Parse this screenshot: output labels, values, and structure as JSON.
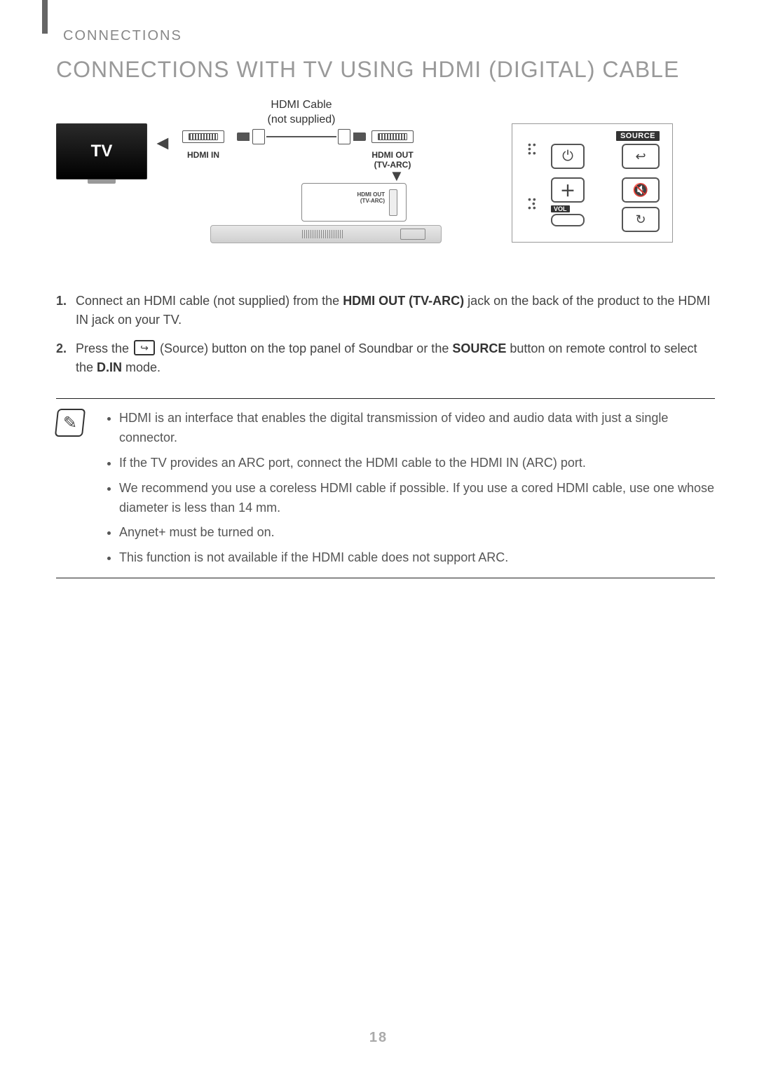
{
  "section_label": "CONNECTIONS",
  "title": "CONNECTIONS WITH TV USING HDMI (DIGITAL) CABLE",
  "diagram": {
    "tv_label": "TV",
    "cable_caption_line1": "HDMI Cable",
    "cable_caption_line2": "(not supplied)",
    "hdmi_in_label": "HDMI IN",
    "hdmi_out_label_line1": "HDMI OUT",
    "hdmi_out_label_line2": "(TV-ARC)",
    "soundbar_port_label_line1": "HDMI OUT",
    "soundbar_port_label_line2": "(TV-ARC)",
    "remote": {
      "source_tag": "SOURCE",
      "vol_tag": "VOL"
    }
  },
  "steps": [
    {
      "num": "1.",
      "pre": "Connect an HDMI cable (not supplied) from the ",
      "bold1": "HDMI OUT (TV-ARC)",
      "mid": " jack on the back of the product to the HDMI IN jack on your TV.",
      "has_icon": false
    },
    {
      "num": "2.",
      "pre": "Press the ",
      "icon": true,
      "mid1": " (Source) button on the top panel of Soundbar or the ",
      "bold1": "SOURCE",
      "mid2": " button on remote control to select the ",
      "bold2": "D.IN",
      "post": " mode."
    }
  ],
  "notes": [
    "HDMI is an interface that enables the digital transmission of video and audio data with just a single connector.",
    "If the TV provides an ARC port, connect the HDMI cable to the HDMI IN (ARC) port.",
    "We recommend you use a coreless HDMI cable if possible. If you use a cored HDMI cable, use one whose diameter is less than 14 mm.",
    "Anynet+ must be turned on.",
    "This function is not available if the HDMI cable does not support ARC."
  ],
  "page_number": "18",
  "colors": {
    "title": "#999999",
    "body": "#444444",
    "rule": "#222222"
  }
}
